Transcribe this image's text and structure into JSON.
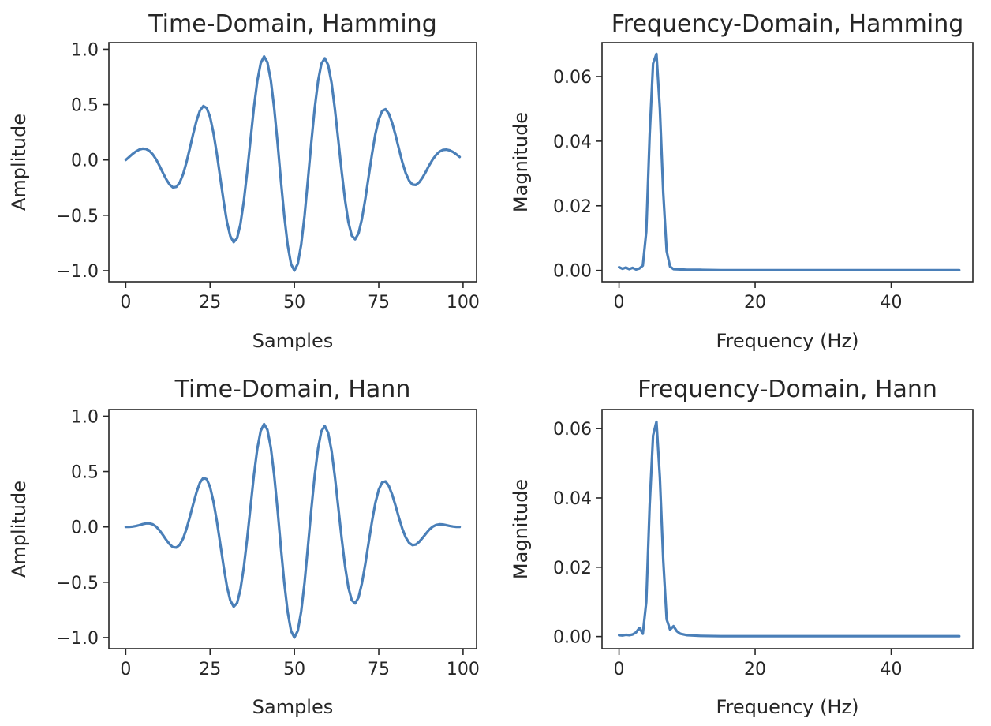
{
  "colors": {
    "line": "#4a7fb8",
    "axes": "#262626",
    "background": "#ffffff"
  },
  "chart_data": [
    {
      "type": "line",
      "title": "Time-Domain, Hamming",
      "xlabel": "Samples",
      "ylabel": "Amplitude",
      "xlim": [
        -5,
        104
      ],
      "ylim": [
        -1.1,
        1.06
      ],
      "xticks": [
        0,
        25,
        50,
        75,
        100
      ],
      "xtick_labels": [
        "0",
        "25",
        "50",
        "75",
        "100"
      ],
      "yticks": [
        -1.0,
        -0.5,
        0.0,
        0.5,
        1.0
      ],
      "ytick_labels": [
        "−1.0",
        "−0.5",
        "0.0",
        "0.5",
        "1.0"
      ],
      "signal": {
        "frequency_hz": 5.5,
        "sample_rate_hz": 100,
        "samples": 100,
        "window": "hamming"
      },
      "series": [
        {
          "x": [],
          "y": []
        }
      ]
    },
    {
      "type": "line",
      "title": "Frequency-Domain, Hamming",
      "xlabel": "Frequency (Hz)",
      "ylabel": "Magnitude",
      "xlim": [
        -2.5,
        52
      ],
      "ylim": [
        -0.0035,
        0.0705
      ],
      "xticks": [
        0,
        20,
        40
      ],
      "xtick_labels": [
        "0",
        "20",
        "40"
      ],
      "yticks": [
        0.0,
        0.02,
        0.04,
        0.06
      ],
      "ytick_labels": [
        "0.00",
        "0.02",
        "0.04",
        "0.06"
      ],
      "series": [
        {
          "x": [
            0,
            0.5,
            1,
            1.5,
            2,
            2.5,
            3,
            3.5,
            4,
            4.5,
            5,
            5.5,
            6,
            6.5,
            7,
            7.5,
            8,
            9,
            10,
            12,
            15,
            20,
            25,
            30,
            35,
            40,
            45,
            50
          ],
          "y": [
            0.001,
            0.0005,
            0.0009,
            0.0004,
            0.0008,
            0.0003,
            0.0006,
            0.0015,
            0.012,
            0.042,
            0.064,
            0.067,
            0.05,
            0.024,
            0.006,
            0.0012,
            0.0004,
            0.0003,
            0.0002,
            0.0002,
            0.0001,
            0.0001,
            0.0001,
            0.0001,
            0.0001,
            0.0001,
            0.0001,
            0.0001
          ]
        }
      ]
    },
    {
      "type": "line",
      "title": "Time-Domain, Hann",
      "xlabel": "Samples",
      "ylabel": "Amplitude",
      "xlim": [
        -5,
        104
      ],
      "ylim": [
        -1.1,
        1.06
      ],
      "xticks": [
        0,
        25,
        50,
        75,
        100
      ],
      "xtick_labels": [
        "0",
        "25",
        "50",
        "75",
        "100"
      ],
      "yticks": [
        -1.0,
        -0.5,
        0.0,
        0.5,
        1.0
      ],
      "ytick_labels": [
        "−1.0",
        "−0.5",
        "0.0",
        "0.5",
        "1.0"
      ],
      "signal": {
        "frequency_hz": 5.5,
        "sample_rate_hz": 100,
        "samples": 100,
        "window": "hann"
      },
      "series": [
        {
          "x": [],
          "y": []
        }
      ]
    },
    {
      "type": "line",
      "title": "Frequency-Domain, Hann",
      "xlabel": "Frequency (Hz)",
      "ylabel": "Magnitude",
      "xlim": [
        -2.5,
        52
      ],
      "ylim": [
        -0.0035,
        0.0655
      ],
      "xticks": [
        0,
        20,
        40
      ],
      "xtick_labels": [
        "0",
        "20",
        "40"
      ],
      "yticks": [
        0.0,
        0.02,
        0.04,
        0.06
      ],
      "ytick_labels": [
        "0.00",
        "0.02",
        "0.04",
        "0.06"
      ],
      "series": [
        {
          "x": [
            0,
            0.5,
            1,
            1.5,
            2,
            2.5,
            3,
            3.5,
            4,
            4.5,
            5,
            5.5,
            6,
            6.5,
            7,
            7.5,
            8,
            8.5,
            9,
            10,
            12,
            15,
            20,
            25,
            30,
            35,
            40,
            45,
            50
          ],
          "y": [
            0.0004,
            0.0003,
            0.0005,
            0.0004,
            0.0006,
            0.0012,
            0.0025,
            0.0008,
            0.01,
            0.038,
            0.058,
            0.062,
            0.046,
            0.022,
            0.005,
            0.002,
            0.003,
            0.0015,
            0.0008,
            0.0004,
            0.0002,
            0.0001,
            0.0001,
            0.0001,
            0.0001,
            0.0001,
            0.0001,
            0.0001,
            0.0001
          ]
        }
      ]
    }
  ]
}
